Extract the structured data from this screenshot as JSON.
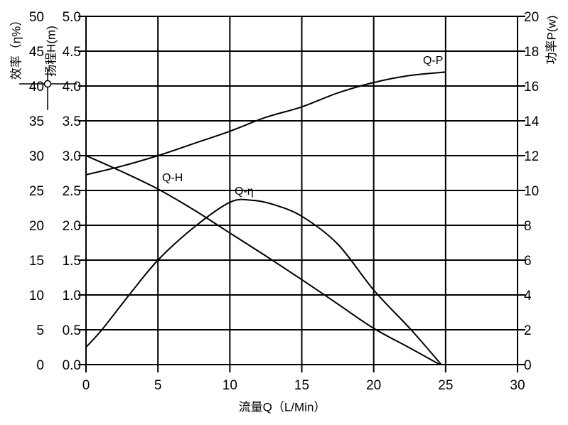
{
  "axes": {
    "efficiency": {
      "title": "效率（η%）",
      "tick_labels": [
        "0",
        "5",
        "10",
        "15",
        "20",
        "25",
        "30",
        "35",
        "40",
        "45",
        "50"
      ]
    },
    "head": {
      "title": "扬程H(m)",
      "tick_labels": [
        "0.0",
        "0.5",
        "1.0",
        "1.5",
        "2.0",
        "2.5",
        "3.0",
        "3.5",
        "4.0",
        "4.5",
        "5.0"
      ]
    },
    "power": {
      "title": "功率P(w)",
      "tick_labels": [
        "0",
        "2",
        "4",
        "6",
        "8",
        "10",
        "12",
        "14",
        "16",
        "18",
        "20"
      ]
    },
    "flow": {
      "title": "流量Q（L/Min）",
      "tick_labels": [
        "0",
        "5",
        "10",
        "15",
        "20",
        "25",
        "30"
      ]
    }
  },
  "curve_labels": {
    "qp": "Q-P",
    "qh": "Q-H",
    "qeta": "Q-η"
  },
  "colors": {
    "line": "#000000",
    "background": "#ffffff"
  },
  "chart_data": {
    "type": "line",
    "title": "",
    "xlabel": "流量Q（L/Min）",
    "x_range": [
      0,
      30
    ],
    "x_ticks": [
      0,
      5,
      10,
      15,
      20,
      25,
      30
    ],
    "grid": true,
    "left_axis_efficiency": {
      "label": "效率（η%）",
      "range": [
        0,
        50
      ],
      "tick_step": 5
    },
    "left_axis_head": {
      "label": "扬程H(m)",
      "range": [
        0,
        5
      ],
      "tick_step": 0.5
    },
    "right_axis_power": {
      "label": "功率P(w)",
      "range": [
        0,
        20
      ],
      "tick_step": 2
    },
    "series": [
      {
        "name": "Q-H",
        "y_axis": "head_m",
        "x": [
          0,
          2.5,
          5,
          7.5,
          10,
          12.5,
          15,
          17.5,
          20,
          22.5,
          24.6
        ],
        "y": [
          3.0,
          2.77,
          2.52,
          2.22,
          1.89,
          1.56,
          1.22,
          0.87,
          0.52,
          0.24,
          0.0
        ]
      },
      {
        "name": "Q-P",
        "y_axis": "power_w",
        "x": [
          0,
          2.5,
          5,
          7.5,
          10,
          12.5,
          15,
          17.5,
          20,
          22.5,
          25
        ],
        "y": [
          10.9,
          11.4,
          12.0,
          12.7,
          13.4,
          14.2,
          14.8,
          15.6,
          16.2,
          16.6,
          16.8
        ]
      },
      {
        "name": "Q-η",
        "y_axis": "efficiency_pct",
        "x": [
          0,
          1.1,
          3,
          5,
          7.5,
          10,
          11.5,
          13,
          15,
          17.5,
          20,
          22.6,
          24.7
        ],
        "y": [
          2.5,
          5.0,
          10.0,
          15.0,
          19.7,
          23.3,
          23.6,
          23.0,
          21.3,
          17.3,
          10.7,
          5.0,
          0.0
        ]
      }
    ]
  }
}
